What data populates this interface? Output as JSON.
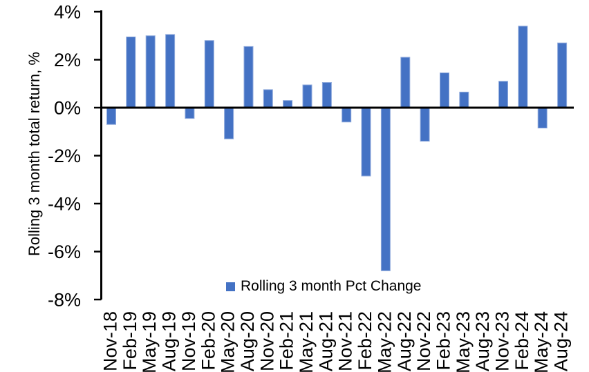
{
  "chart_data": {
    "type": "bar",
    "title": "",
    "xlabel": "",
    "ylabel": "Rolling 3 month total return, %",
    "ylim": [
      -8,
      4
    ],
    "grid": false,
    "legend_position": "bottom-center",
    "background_color": "#FFFFFF",
    "axis_color": "#000000",
    "y_ticks": [
      {
        "value": 4,
        "label": "4%"
      },
      {
        "value": 2,
        "label": "2%"
      },
      {
        "value": 0,
        "label": "0%"
      },
      {
        "value": -2,
        "label": "-2%"
      },
      {
        "value": -4,
        "label": "-4%"
      },
      {
        "value": -6,
        "label": "-6%"
      },
      {
        "value": -8,
        "label": "-8%"
      }
    ],
    "categories": [
      "Nov-18",
      "Feb-19",
      "May-19",
      "Aug-19",
      "Nov-19",
      "Feb-20",
      "May-20",
      "Aug-20",
      "Nov-20",
      "Feb-21",
      "May-21",
      "Aug-21",
      "Nov-21",
      "Feb-22",
      "May-22",
      "Aug-22",
      "Nov-22",
      "Feb-23",
      "May-23",
      "Aug-23",
      "Nov-23",
      "Feb-24",
      "May-24",
      "Aug-24"
    ],
    "series": [
      {
        "name": "Rolling 3 month Pct Change",
        "color": "#4472C4",
        "border_color": "#8FAADC",
        "values": [
          -0.7,
          2.95,
          3.0,
          3.05,
          -0.45,
          2.8,
          -1.3,
          2.55,
          0.75,
          0.3,
          0.95,
          1.05,
          -0.6,
          -2.85,
          -6.8,
          2.1,
          -1.4,
          1.45,
          0.65,
          0.0,
          1.1,
          3.4,
          -0.85,
          2.7
        ]
      }
    ],
    "legend": [
      {
        "label": "Rolling 3 month Pct Change",
        "color": "#4472C4"
      }
    ]
  }
}
